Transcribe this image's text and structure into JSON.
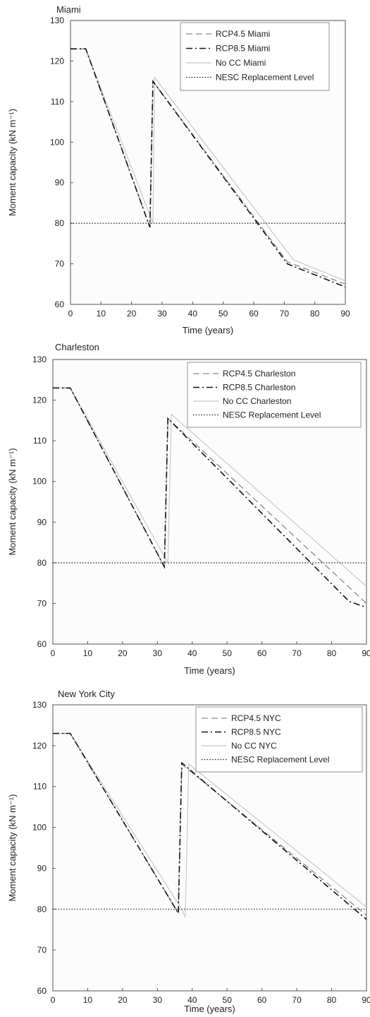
{
  "chart_data": [
    {
      "type": "line",
      "title": "Miami",
      "xlabel": "Time (years)",
      "ylabel": "Moment capacity (kN m⁻¹)",
      "xlim": [
        0,
        90
      ],
      "ylim": [
        60,
        130
      ],
      "xticks": [
        "0",
        "10",
        "20",
        "30",
        "40",
        "50",
        "60",
        "70",
        "80",
        "90"
      ],
      "yticks": [
        "60",
        "70",
        "80",
        "90",
        "100",
        "110",
        "120",
        "130"
      ],
      "legend_position": "top-right",
      "series": [
        {
          "name": "RCP4.5 Miami",
          "style": "dashed",
          "color": "#8a8a8a",
          "x": [
            0,
            5,
            26,
            27,
            71,
            90
          ],
          "y": [
            123,
            123,
            79,
            115,
            70.5,
            65
          ]
        },
        {
          "name": "RCP8.5 Miami",
          "style": "dashdot",
          "color": "#111111",
          "x": [
            0,
            5,
            26,
            27,
            71,
            90
          ],
          "y": [
            123,
            123,
            79,
            115,
            70,
            64.3
          ]
        },
        {
          "name": "No CC Miami",
          "style": "solid",
          "color": "#c8c8c8",
          "x": [
            0,
            5,
            27,
            27.5,
            73,
            90
          ],
          "y": [
            123,
            123,
            80,
            116,
            71,
            65.8
          ]
        },
        {
          "name": "NESC Replacement Level",
          "style": "dotted",
          "color": "#222222",
          "x": [
            0,
            90
          ],
          "y": [
            80,
            80
          ]
        }
      ]
    },
    {
      "type": "line",
      "title": "Charleston",
      "xlabel": "Time (years)",
      "ylabel": "Moment capacity (kN m⁻¹)",
      "xlim": [
        0,
        90
      ],
      "ylim": [
        60,
        130
      ],
      "xticks": [
        "0",
        "10",
        "20",
        "30",
        "40",
        "50",
        "60",
        "70",
        "80",
        "90"
      ],
      "yticks": [
        "60",
        "70",
        "80",
        "90",
        "100",
        "110",
        "120",
        "130"
      ],
      "legend_position": "top-right",
      "series": [
        {
          "name": "RCP4.5 Charleston",
          "style": "dashed",
          "color": "#8a8a8a",
          "x": [
            0,
            5,
            32,
            33,
            90
          ],
          "y": [
            123,
            123,
            79,
            115.5,
            70
          ]
        },
        {
          "name": "RCP8.5 Charleston",
          "style": "dashdot",
          "color": "#111111",
          "x": [
            0,
            5,
            32,
            33,
            85,
            90
          ],
          "y": [
            123,
            123,
            79,
            115.5,
            70.5,
            69
          ]
        },
        {
          "name": "No CC Charleston",
          "style": "solid",
          "color": "#c8c8c8",
          "x": [
            0,
            5,
            33,
            34,
            90
          ],
          "y": [
            123,
            123,
            80,
            116.5,
            74.2
          ]
        },
        {
          "name": "NESC Replacement Level",
          "style": "dotted",
          "color": "#222222",
          "x": [
            0,
            90
          ],
          "y": [
            80,
            80
          ]
        }
      ]
    },
    {
      "type": "line",
      "title": "New York City",
      "xlabel": "Time (years)",
      "ylabel": "Moment capacity (kN m⁻¹)",
      "xlim": [
        0,
        90
      ],
      "ylim": [
        60,
        130
      ],
      "xticks": [
        "0",
        "10",
        "20",
        "30",
        "40",
        "50",
        "60",
        "70",
        "80",
        "90"
      ],
      "yticks": [
        "60",
        "70",
        "80",
        "90",
        "100",
        "110",
        "120",
        "130"
      ],
      "legend_position": "top-right",
      "series": [
        {
          "name": "RCP4.5 NYC",
          "style": "dashed",
          "color": "#8a8a8a",
          "x": [
            0,
            5,
            36,
            37,
            90
          ],
          "y": [
            123,
            123,
            79,
            115.5,
            78.5
          ]
        },
        {
          "name": "RCP8.5 NYC",
          "style": "dashdot",
          "color": "#111111",
          "x": [
            0,
            5,
            36,
            37,
            90
          ],
          "y": [
            123,
            123,
            79,
            115.8,
            77.5
          ]
        },
        {
          "name": "No CC NYC",
          "style": "solid",
          "color": "#c8c8c8",
          "x": [
            0,
            5,
            37,
            38,
            39,
            90
          ],
          "y": [
            123,
            123,
            80,
            78,
            115.5,
            80.5
          ]
        },
        {
          "name": "NESC Replacement Level",
          "style": "dotted",
          "color": "#222222",
          "x": [
            0,
            90
          ],
          "y": [
            80,
            80
          ]
        }
      ]
    }
  ]
}
